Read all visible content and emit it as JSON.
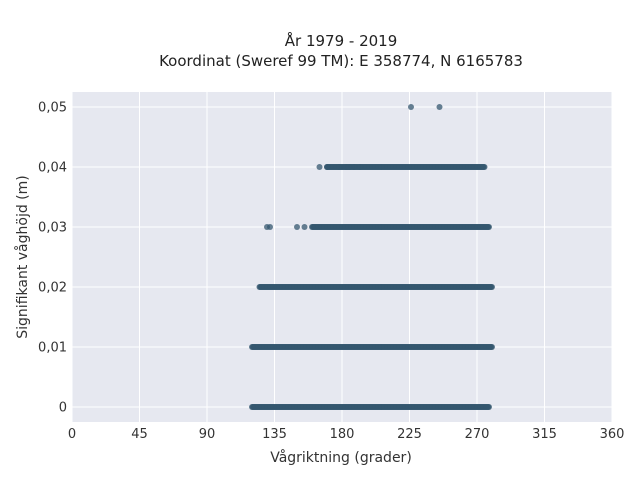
{
  "chart_data": {
    "type": "scatter",
    "title": "År 1979 - 2019",
    "subtitle": "Koordinat (Sweref 99 TM): E 358774, N 6165783",
    "xlabel": "Vågriktning (grader)",
    "ylabel": "Signifikant våghöjd (m)",
    "xlim": [
      0,
      360
    ],
    "ylim": [
      -0.0025,
      0.0525
    ],
    "x_ticks": [
      0,
      45,
      90,
      135,
      180,
      225,
      270,
      315,
      360
    ],
    "y_ticks": [
      0,
      0.01,
      0.02,
      0.03,
      0.04,
      0.05
    ],
    "x_tick_labels": [
      "0",
      "45",
      "90",
      "135",
      "180",
      "225",
      "270",
      "315",
      "360"
    ],
    "y_tick_labels": [
      "0",
      "0,01",
      "0,02",
      "0,03",
      "0,04",
      "0,05"
    ],
    "grid": true,
    "marker_color": "#34576f",
    "background_color": "#e6e8f0",
    "series": [
      {
        "values": [
          {
            "y": 0.05,
            "x": [
              226,
              245
            ]
          },
          {
            "y": 0.04,
            "x_range": [
              170,
              275
            ],
            "x": [
              165,
              170,
              178,
              183,
              185,
              188,
              192
            ]
          },
          {
            "y": 0.03,
            "x_range": [
              160,
              278
            ],
            "x": [
              130,
              132,
              150,
              155
            ]
          },
          {
            "y": 0.02,
            "x_range": [
              125,
              280
            ],
            "x": []
          },
          {
            "y": 0.01,
            "x_range": [
              120,
              280
            ],
            "x": []
          },
          {
            "y": 0,
            "x_range": [
              120,
              278
            ],
            "x": []
          }
        ]
      }
    ]
  }
}
